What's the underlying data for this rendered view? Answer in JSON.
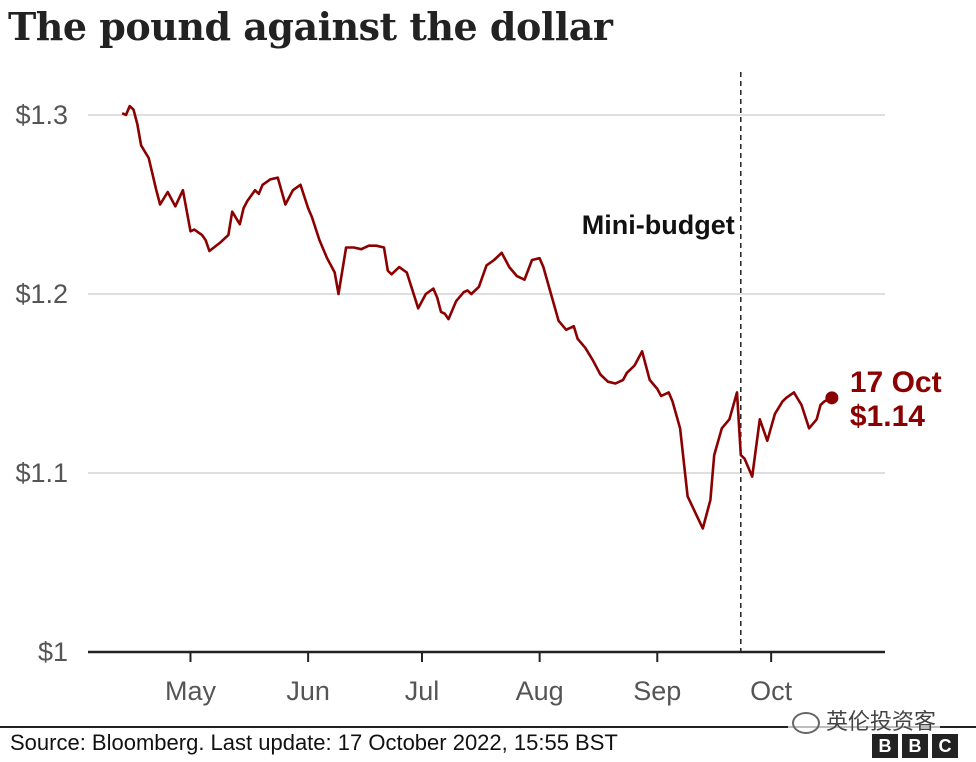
{
  "title": "The pound against the dollar",
  "source": "Source: Bloomberg. Last update: 17 October 2022, 15:55 BST",
  "watermark": "英伦投资客",
  "logo": [
    "B",
    "B",
    "C"
  ],
  "colors": {
    "line": "#8b0000",
    "grid": "#cccccc",
    "axis": "#222222",
    "text": "#555555"
  },
  "chart_data": {
    "type": "line",
    "title": "The pound against the dollar",
    "xlabel": "",
    "ylabel": "",
    "ylim": [
      1.0,
      1.3
    ],
    "xlim": [
      "2022-04-04",
      "2022-10-31"
    ],
    "y_ticks": [
      {
        "value": 1.3,
        "label": "$1.3"
      },
      {
        "value": 1.2,
        "label": "$1.2"
      },
      {
        "value": 1.1,
        "label": "$1.1"
      },
      {
        "value": 1.0,
        "label": "$1"
      }
    ],
    "x_ticks": [
      {
        "date": "2022-05-01",
        "label": "May"
      },
      {
        "date": "2022-06-01",
        "label": "Jun"
      },
      {
        "date": "2022-07-01",
        "label": "Jul"
      },
      {
        "date": "2022-08-01",
        "label": "Aug"
      },
      {
        "date": "2022-09-01",
        "label": "Sep"
      },
      {
        "date": "2022-10-01",
        "label": "Oct"
      }
    ],
    "grid": true,
    "annotation": {
      "date": "2022-09-23",
      "label": "Mini-budget"
    },
    "end_label": {
      "date_label": "17 Oct",
      "value_label": "$1.14"
    },
    "series": [
      {
        "x": [
          "2022-04-13",
          "2022-04-14",
          "2022-04-15",
          "2022-04-16",
          "2022-04-17",
          "2022-04-18",
          "2022-04-20",
          "2022-04-22",
          "2022-04-23",
          "2022-04-25",
          "2022-04-26",
          "2022-04-27",
          "2022-04-29",
          "2022-05-01",
          "2022-05-02",
          "2022-05-04",
          "2022-05-05",
          "2022-05-06",
          "2022-05-09",
          "2022-05-11",
          "2022-05-12",
          "2022-05-14",
          "2022-05-15",
          "2022-05-16",
          "2022-05-18",
          "2022-05-19",
          "2022-05-20",
          "2022-05-22",
          "2022-05-24",
          "2022-05-26",
          "2022-05-28",
          "2022-05-30",
          "2022-06-01",
          "2022-06-02",
          "2022-06-04",
          "2022-06-06",
          "2022-06-08",
          "2022-06-09",
          "2022-06-11",
          "2022-06-13",
          "2022-06-15",
          "2022-06-17",
          "2022-06-19",
          "2022-06-21",
          "2022-06-22",
          "2022-06-23",
          "2022-06-25",
          "2022-06-27",
          "2022-06-30",
          "2022-07-02",
          "2022-07-04",
          "2022-07-05",
          "2022-07-06",
          "2022-07-07",
          "2022-07-08",
          "2022-07-10",
          "2022-07-12",
          "2022-07-13",
          "2022-07-14",
          "2022-07-16",
          "2022-07-18",
          "2022-07-20",
          "2022-07-22",
          "2022-07-24",
          "2022-07-26",
          "2022-07-28",
          "2022-07-30",
          "2022-08-01",
          "2022-08-02",
          "2022-08-04",
          "2022-08-06",
          "2022-08-08",
          "2022-08-10",
          "2022-08-11",
          "2022-08-13",
          "2022-08-15",
          "2022-08-17",
          "2022-08-19",
          "2022-08-21",
          "2022-08-23",
          "2022-08-24",
          "2022-08-26",
          "2022-08-28",
          "2022-08-30",
          "2022-09-01",
          "2022-09-02",
          "2022-09-04",
          "2022-09-05",
          "2022-09-07",
          "2022-09-09",
          "2022-09-11",
          "2022-09-13",
          "2022-09-15",
          "2022-09-16",
          "2022-09-18",
          "2022-09-20",
          "2022-09-22",
          "2022-09-23",
          "2022-09-24",
          "2022-09-26",
          "2022-09-28",
          "2022-09-30",
          "2022-10-02",
          "2022-10-04",
          "2022-10-05",
          "2022-10-07",
          "2022-10-09",
          "2022-10-11",
          "2022-10-13",
          "2022-10-14",
          "2022-10-15",
          "2022-10-17"
        ],
        "y": [
          1.301,
          1.3,
          1.305,
          1.303,
          1.295,
          1.283,
          1.276,
          1.258,
          1.25,
          1.257,
          1.253,
          1.249,
          1.258,
          1.235,
          1.236,
          1.233,
          1.23,
          1.224,
          1.229,
          1.233,
          1.246,
          1.239,
          1.248,
          1.252,
          1.258,
          1.256,
          1.261,
          1.264,
          1.265,
          1.25,
          1.258,
          1.261,
          1.248,
          1.243,
          1.23,
          1.22,
          1.212,
          1.2,
          1.226,
          1.226,
          1.225,
          1.227,
          1.227,
          1.226,
          1.213,
          1.211,
          1.215,
          1.212,
          1.192,
          1.2,
          1.203,
          1.198,
          1.19,
          1.189,
          1.186,
          1.196,
          1.201,
          1.202,
          1.2,
          1.204,
          1.216,
          1.219,
          1.223,
          1.215,
          1.21,
          1.208,
          1.219,
          1.22,
          1.215,
          1.2,
          1.185,
          1.18,
          1.182,
          1.175,
          1.17,
          1.163,
          1.155,
          1.151,
          1.15,
          1.152,
          1.156,
          1.16,
          1.168,
          1.152,
          1.147,
          1.143,
          1.145,
          1.14,
          1.125,
          1.087,
          1.078,
          1.069,
          1.085,
          1.11,
          1.125,
          1.13,
          1.145,
          1.11,
          1.108,
          1.098,
          1.13,
          1.118,
          1.133,
          1.14,
          1.142,
          1.145,
          1.138,
          1.125,
          1.13,
          1.138,
          1.14,
          1.142
        ]
      }
    ]
  }
}
